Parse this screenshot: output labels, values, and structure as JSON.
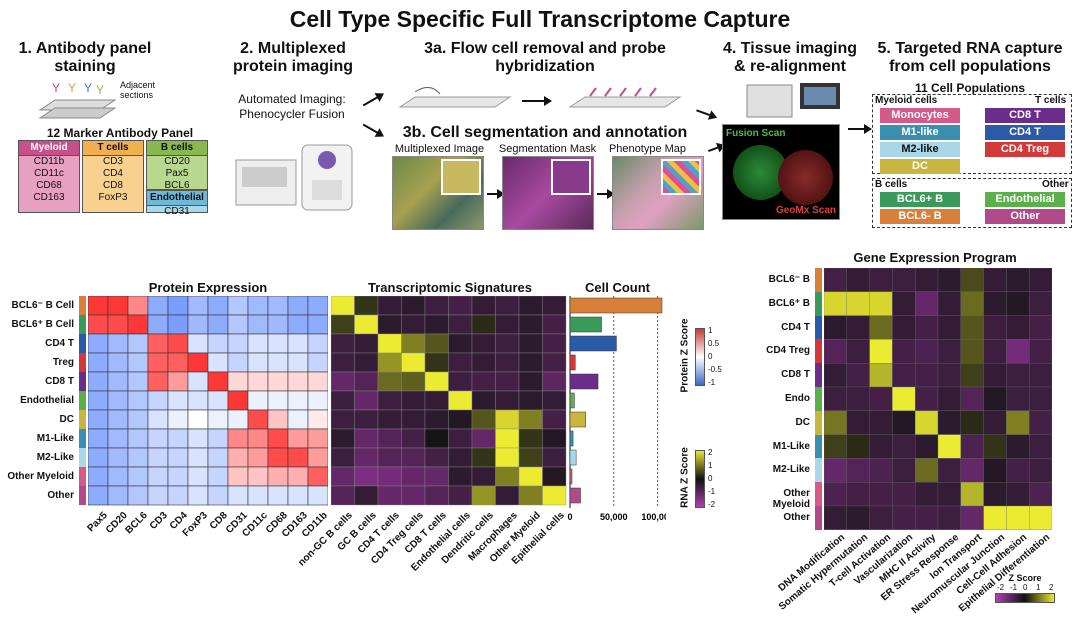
{
  "title": "Cell Type Specific Full Transcriptome Capture",
  "steps": {
    "s1": "1. Antibody panel staining",
    "s1_adjacent": "Adjacent sections",
    "s1_panel": "12 Marker Antibody Panel",
    "s2": "2. Multiplexed protein imaging",
    "s2_sub1": "Automated Imaging:",
    "s2_sub2": "Phenocycler Fusion",
    "s3a": "3a. Flow cell removal and probe hybridization",
    "s3b": "3b. Cell segmentation and annotation",
    "s3b_img1": "Multiplexed Image",
    "s3b_img2": "Segmentation Mask",
    "s3b_img3": "Phenotype Map",
    "s4": "4. Tissue imaging & re-alignment",
    "s4_fusion": "Fusion Scan",
    "s4_geomx": "GeoMx Scan",
    "s5": "5. Targeted RNA capture from cell populations",
    "s5_sub": "11 Cell Populations"
  },
  "panel": {
    "myeloid": {
      "head": "Myeloid",
      "items": [
        "CD11b",
        "CD11c",
        "CD68",
        "CD163"
      ]
    },
    "tcells": {
      "head": "T cells",
      "items": [
        "CD3",
        "CD4",
        "CD8",
        "FoxP3"
      ]
    },
    "bcells": {
      "head": "B cells",
      "items": [
        "CD20",
        "Pax5",
        "BCL6"
      ]
    },
    "endo": {
      "head": "Endothelial",
      "items": [
        "CD31"
      ]
    }
  },
  "populations": {
    "myeloid_head": "Myeloid cells",
    "t_head": "T cells",
    "b_head": "B cells",
    "other_head": "Other",
    "items": {
      "monocytes": "Monocytes",
      "m1": "M1-like",
      "m2": "M2-like",
      "dc": "DC",
      "cd8": "CD8 T",
      "cd4": "CD4 T",
      "treg": "CD4 Treg",
      "bclp": "BCL6+ B",
      "bclm": "BCL6- B",
      "endo": "Endothelial",
      "other": "Other"
    },
    "colors": {
      "monocytes": "#d45a8a",
      "m1": "#3a8fb0",
      "m2": "#a8d8e8",
      "dc": "#c9b640",
      "cd8": "#6a2e8a",
      "cd4": "#2a5aa8",
      "treg": "#d23a3a",
      "bclp": "#3a9a5a",
      "bclm": "#d8803a",
      "endo": "#5ab04a",
      "other": "#b04a8a"
    }
  },
  "left_heatmap": {
    "rows": [
      "BCL6⁻ B Cell",
      "BCL6⁺ B Cell",
      "CD4 T",
      "Treg",
      "CD8 T",
      "Endothelial",
      "DC",
      "M1-Like",
      "M2-Like",
      "Other Myeloid",
      "Other"
    ],
    "row_colors": [
      "#d8803a",
      "#3a9a5a",
      "#2a5aa8",
      "#d23a3a",
      "#6a2e8a",
      "#5ab04a",
      "#c9b640",
      "#3a8fb0",
      "#a8d8e8",
      "#d45a8a",
      "#b04a8a"
    ],
    "protein_title": "Protein Expression",
    "protein_cols": [
      "Pax5",
      "CD20",
      "BCL6",
      "CD3",
      "CD4",
      "FoxP3",
      "CD8",
      "CD31",
      "CD11c",
      "CD68",
      "CD163",
      "CD11b"
    ],
    "transcript_title": "Transcriptomic Signatures",
    "transcript_cols": [
      "non-GC B cells",
      "GC B cells",
      "CD4 T cells",
      "CD4 Treg cells",
      "CD8 T cells",
      "Endothelial cells",
      "Dendritic cells",
      "Macrophages",
      "Other Myeloid",
      "Epithelial cells"
    ],
    "count_title": "Cell Count",
    "count_ticks": [
      "0",
      "50,000",
      "100,000"
    ],
    "counts": [
      105000,
      36000,
      53000,
      6000,
      32000,
      5000,
      18000,
      3500,
      7000,
      2000,
      12000
    ],
    "protein_legend": "Protein Z Score",
    "protein_legend_ticks": [
      "1",
      "0.5",
      "0",
      "-0.5",
      "-1"
    ],
    "rna_legend": "RNA Z Score",
    "rna_legend_ticks": [
      "2",
      "1",
      "0",
      "-1",
      "-2"
    ]
  },
  "right_heatmap": {
    "title": "Gene Expression Program",
    "rows": [
      "BCL6⁻ B",
      "BCL6⁺ B",
      "CD4 T",
      "CD4 Treg",
      "CD8 T",
      "Endo",
      "DC",
      "M1-Like",
      "M2-Like",
      "Other Myeloid",
      "Other"
    ],
    "cols": [
      "DNA Modification",
      "Somatic Hypermutation",
      "T-cell Activation",
      "Vascularization",
      "MHC II Activity",
      "ER Stress Response",
      "Ion Transport",
      "Neuromuscular Junction",
      "Cell-Cell Adhesion",
      "Epithelial Differentiation"
    ],
    "legend_title": "Z Score",
    "legend_ticks": [
      "-2",
      "-1",
      "0",
      "1",
      "2"
    ]
  }
}
